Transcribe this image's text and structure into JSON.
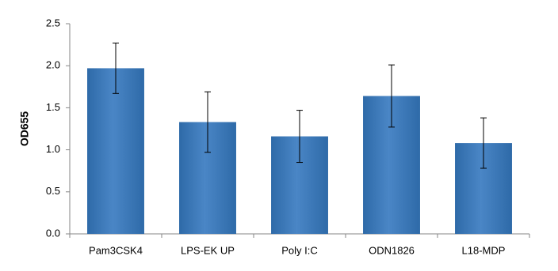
{
  "chart_data": {
    "type": "bar",
    "ylabel": "OD655",
    "categories": [
      "Pam3CSK4",
      "LPS-EK UP",
      "Poly I:C",
      "ODN1826",
      "L18-MDP"
    ],
    "values": [
      1.97,
      1.33,
      1.16,
      1.64,
      1.08
    ],
    "errors": [
      0.3,
      0.36,
      0.31,
      0.37,
      0.3
    ],
    "color": "#4a86c6",
    "ylim": [
      0,
      2.5
    ],
    "yticks": [
      {
        "value": 0,
        "label": "0.0"
      },
      0.5,
      {
        "value": 1,
        "label": "1.0"
      },
      1.5,
      {
        "value": 2,
        "label": "2.0"
      },
      2.5
    ],
    "grid": false
  }
}
